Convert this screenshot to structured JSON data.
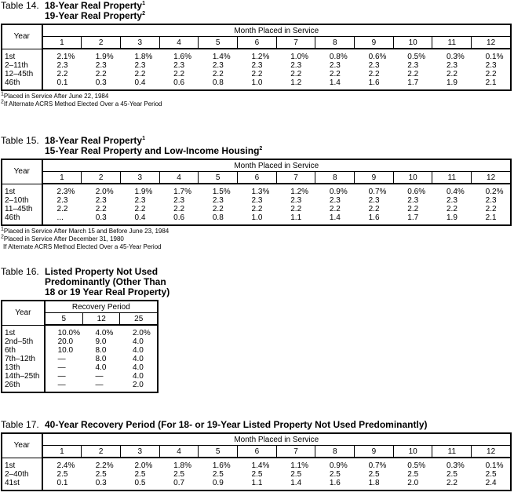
{
  "tables": [
    {
      "id": "t14",
      "label": "Table 14.",
      "title_lines": [
        {
          "text": "18-Year Real Property",
          "sup": "1"
        },
        {
          "text": "19-Year Real Property",
          "sup": "2"
        }
      ],
      "year_header": "Year",
      "group_header": "Month Placed in Service",
      "columns": [
        "1",
        "2",
        "3",
        "4",
        "5",
        "6",
        "7",
        "8",
        "9",
        "10",
        "11",
        "12"
      ],
      "rows": [
        {
          "year": "1st",
          "values": [
            "2.1%",
            "1.9%",
            "1.8%",
            "1.6%",
            "1.4%",
            "1.2%",
            "1.0%",
            "0.8%",
            "0.6%",
            "0.5%",
            "0.3%",
            "0.1%"
          ]
        },
        {
          "year": "2–11th",
          "values": [
            "2.3",
            "2.3",
            "2.3",
            "2.3",
            "2.3",
            "2.3",
            "2.3",
            "2.3",
            "2.3",
            "2.3",
            "2.3",
            "2.3"
          ]
        },
        {
          "year": "12–45th",
          "values": [
            "2.2",
            "2.2",
            "2.2",
            "2.2",
            "2.2",
            "2.2",
            "2.2",
            "2.2",
            "2.2",
            "2.2",
            "2.2",
            "2.2"
          ]
        },
        {
          "year": "46th",
          "values": [
            "0.1",
            "0.3",
            "0.4",
            "0.6",
            "0.8",
            "1.0",
            "1.2",
            "1.4",
            "1.6",
            "1.7",
            "1.9",
            "2.1"
          ]
        }
      ],
      "footnotes": [
        {
          "mark": "1",
          "text": "Placed in Service After June 22, 1984"
        },
        {
          "mark": "2",
          "text": "If Alternate ACRS Method Elected Over a 45-Year Period"
        }
      ]
    },
    {
      "id": "t15",
      "label": "Table 15.",
      "title_lines": [
        {
          "text": "18-Year Real Property",
          "sup": "1"
        },
        {
          "text": "15-Year Real Property and Low-Income Housing",
          "sup": "2"
        }
      ],
      "year_header": "Year",
      "group_header": "Month Placed in Service",
      "columns": [
        "1",
        "2",
        "3",
        "4",
        "5",
        "6",
        "7",
        "8",
        "9",
        "10",
        "11",
        "12"
      ],
      "rows": [
        {
          "year": "1st",
          "values": [
            "2.3%",
            "2.0%",
            "1.9%",
            "1.7%",
            "1.5%",
            "1.3%",
            "1.2%",
            "0.9%",
            "0.7%",
            "0.6%",
            "0.4%",
            "0.2%"
          ]
        },
        {
          "year": "2–10th",
          "values": [
            "2.3",
            "2.3",
            "2.3",
            "2.3",
            "2.3",
            "2.3",
            "2.3",
            "2.3",
            "2.3",
            "2.3",
            "2.3",
            "2.3"
          ]
        },
        {
          "year": "11–45th",
          "values": [
            "2.2",
            "2.2",
            "2.2",
            "2.2",
            "2.2",
            "2.2",
            "2.2",
            "2.2",
            "2.2",
            "2.2",
            "2.2",
            "2.2"
          ]
        },
        {
          "year": "46th",
          "values": [
            "...",
            "0.3",
            "0.4",
            "0.6",
            "0.8",
            "1.0",
            "1.1",
            "1.4",
            "1.6",
            "1.7",
            "1.9",
            "2.1"
          ]
        }
      ],
      "footnotes": [
        {
          "mark": "1",
          "text": "Placed in Service After March 15 and Before June 23, 1984"
        },
        {
          "mark": "2",
          "text": "Placed in Service After December 31, 1980"
        },
        {
          "mark": "",
          "text": "If Alternate ACRS Method Elected Over a 45-Year Period"
        }
      ]
    },
    {
      "id": "t16",
      "label": "Table 16.",
      "title_lines": [
        {
          "text": "Listed Property Not Used"
        },
        {
          "text": "Predominantly (Other Than"
        },
        {
          "text": "18 or 19 Year Real Property)"
        }
      ],
      "year_header": "Year",
      "group_header": "Recovery Period",
      "columns": [
        "5",
        "12",
        "25"
      ],
      "rows": [
        {
          "year": "1st",
          "values": [
            "10.0%",
            "4.0%",
            "2.0%"
          ]
        },
        {
          "year": "2nd–5th",
          "values": [
            "20.0",
            "9.0",
            "4.0"
          ]
        },
        {
          "year": "6th",
          "values": [
            "10.0",
            "8.0",
            "4.0"
          ]
        },
        {
          "year": "7th–12th",
          "values": [
            "—",
            "8.0",
            "4.0"
          ]
        },
        {
          "year": "13th",
          "values": [
            "—",
            "4.0",
            "4.0"
          ]
        },
        {
          "year": "14th–25th",
          "values": [
            "—",
            "—",
            "4.0"
          ]
        },
        {
          "year": "26th",
          "values": [
            "—",
            "—",
            "2.0"
          ]
        }
      ],
      "footnotes": []
    },
    {
      "id": "t17",
      "label": "Table 17.",
      "title_lines": [
        {
          "text": "40-Year Recovery Period (For 18- or 19-Year Listed Property Not Used Predominantly)"
        }
      ],
      "year_header": "Year",
      "group_header": "Month Placed in Service",
      "columns": [
        "1",
        "2",
        "3",
        "4",
        "5",
        "6",
        "7",
        "8",
        "9",
        "10",
        "11",
        "12"
      ],
      "rows": [
        {
          "year": "1st",
          "values": [
            "2.4%",
            "2.2%",
            "2.0%",
            "1.8%",
            "1.6%",
            "1.4%",
            "1.1%",
            "0.9%",
            "0.7%",
            "0.5%",
            "0.3%",
            "0.1%"
          ]
        },
        {
          "year": "2–40th",
          "values": [
            "2.5",
            "2.5",
            "2.5",
            "2.5",
            "2.5",
            "2.5",
            "2.5",
            "2.5",
            "2.5",
            "2.5",
            "2.5",
            "2.5"
          ]
        },
        {
          "year": "41st",
          "values": [
            "0.1",
            "0.3",
            "0.5",
            "0.7",
            "0.9",
            "1.1",
            "1.4",
            "1.6",
            "1.8",
            "2.0",
            "2.2",
            "2.4"
          ]
        }
      ],
      "footnotes": []
    }
  ]
}
